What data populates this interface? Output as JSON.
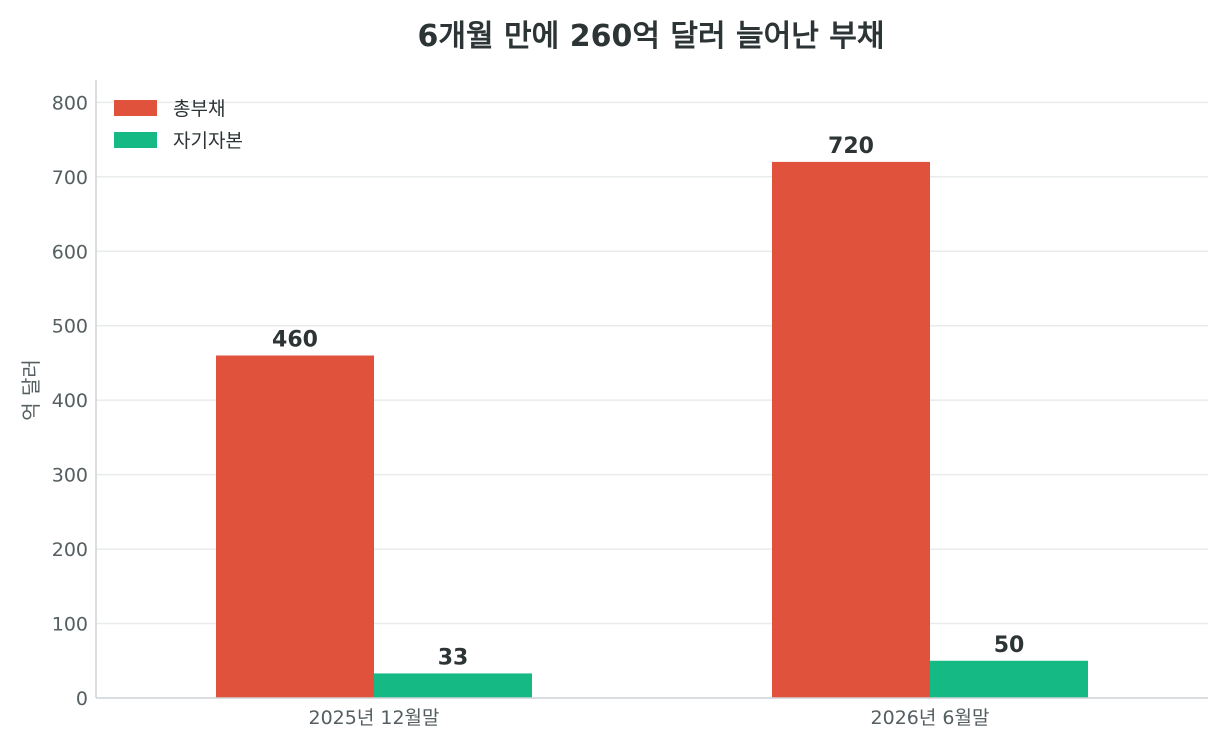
{
  "chart_data": {
    "type": "bar",
    "title": "6개월 만에 260억 달러 늘어난 부채",
    "ylabel": "억 달러",
    "xlabel": "",
    "categories": [
      "2025년 12월말",
      "2026년 6월말"
    ],
    "series": [
      {
        "name": "총부채",
        "values": [
          460,
          720
        ],
        "color": "#e0523b"
      },
      {
        "name": "자기자본",
        "values": [
          33,
          50
        ],
        "color": "#14b983"
      }
    ],
    "ylim": [
      0,
      830
    ],
    "yticks": [
      0,
      100,
      200,
      300,
      400,
      500,
      600,
      700,
      800
    ],
    "grid": true,
    "legend": "top-left"
  }
}
